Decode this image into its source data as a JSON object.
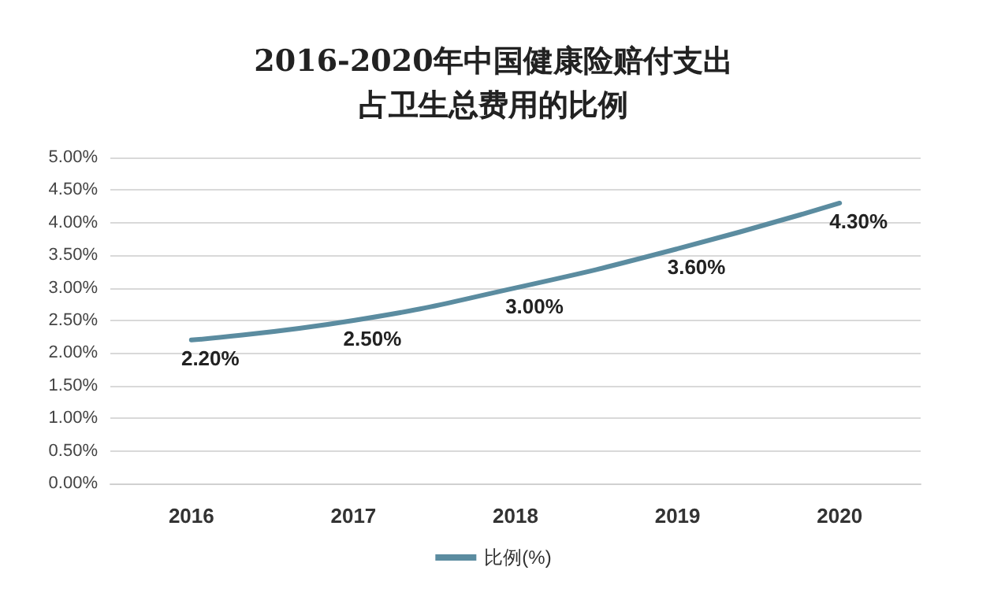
{
  "chart_data": {
    "type": "line",
    "title": "2016-2020年中国健康险赔付支出占卫生总费用的比例",
    "categories": [
      "2016",
      "2017",
      "2018",
      "2019",
      "2020"
    ],
    "series": [
      {
        "name": "比例(%)",
        "color": "#5b8ca0",
        "values": [
          2.2,
          2.5,
          3.0,
          3.6,
          4.3
        ],
        "value_labels": [
          "2.20%",
          "2.50%",
          "3.00%",
          "3.60%",
          "4.30%"
        ]
      }
    ],
    "ylim": [
      0,
      5
    ],
    "yticks": [
      {
        "value": 0,
        "label": "0.00%"
      },
      {
        "value": 0.5,
        "label": "0.50%"
      },
      {
        "value": 1,
        "label": "1.00%"
      },
      {
        "value": 1.5,
        "label": "1.50%"
      },
      {
        "value": 2,
        "label": "2.00%"
      },
      {
        "value": 2.5,
        "label": "2.50%"
      },
      {
        "value": 3,
        "label": "3.00%"
      },
      {
        "value": 3.5,
        "label": "3.50%"
      },
      {
        "value": 4,
        "label": "4.00%"
      },
      {
        "value": 4.5,
        "label": "4.50%"
      },
      {
        "value": 5,
        "label": "5.00%"
      }
    ],
    "grid": "y",
    "legend": "bottom",
    "marker": "none",
    "line_style": "solid"
  }
}
